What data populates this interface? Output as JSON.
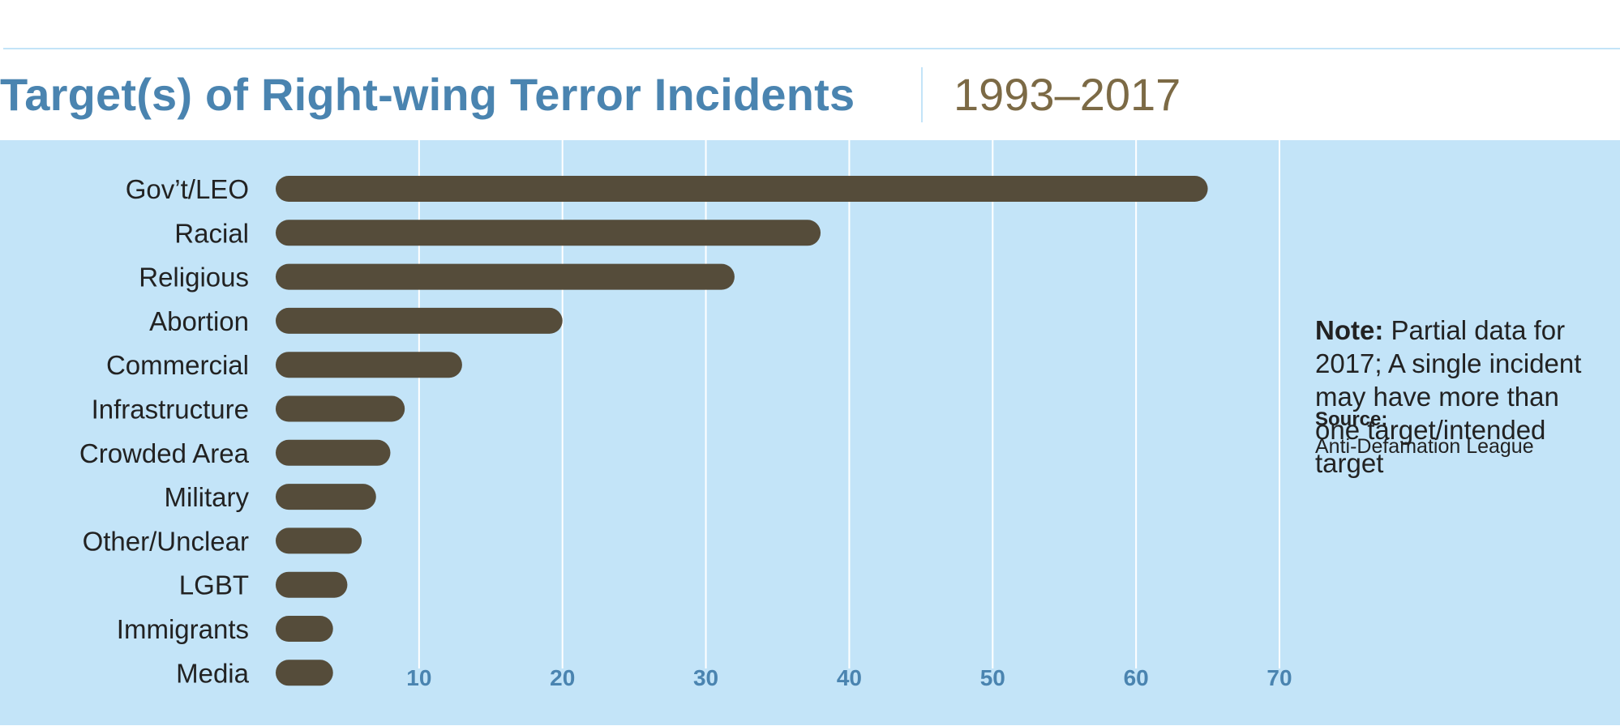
{
  "chart_data": {
    "type": "bar",
    "orientation": "horizontal",
    "title": "Target(s) of Right-wing Terror Incidents",
    "subtitle": "1993–2017",
    "categories": [
      "Gov’t/LEO",
      "Racial",
      "Religious",
      "Abortion",
      "Commercial",
      "Infrastructure",
      "Crowded Area",
      "Military",
      "Other/Unclear",
      "LGBT",
      "Immigrants",
      "Media"
    ],
    "values": [
      65,
      38,
      32,
      20,
      13,
      9,
      8,
      7,
      6,
      5,
      4,
      4
    ],
    "xlim": [
      0,
      70
    ],
    "xticks": [
      "10",
      "20",
      "30",
      "40",
      "50",
      "60",
      "70"
    ],
    "grid": true,
    "bar_color": "#554c3a",
    "background_color": "#c3e4f8",
    "note_label": "Note:",
    "note_text": "Partial data for 2017; A single incident may have more than one target/intended target",
    "source_label": "Source:",
    "source_text": "Anti-Defamation League"
  }
}
